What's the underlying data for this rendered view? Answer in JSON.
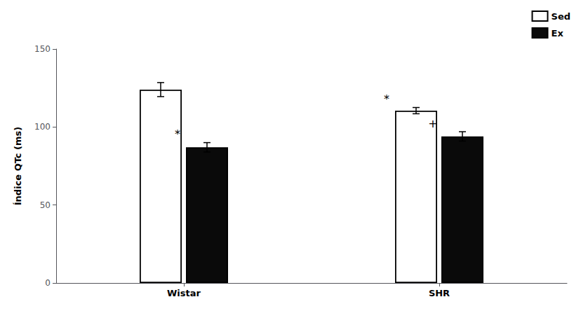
{
  "chart_data": {
    "type": "bar",
    "categories": [
      "Wistar",
      "SHR"
    ],
    "series": [
      {
        "name": "Sed",
        "color": "#ffffff",
        "values": [
          124.0,
          110.5
        ],
        "errors": [
          4.5,
          2.0
        ],
        "annotations": [
          null,
          "*"
        ]
      },
      {
        "name": "Ex",
        "color": "#0a0a0a",
        "values": [
          87.0,
          94.0
        ],
        "errors": [
          3.0,
          3.0
        ],
        "annotations": [
          "*",
          "+"
        ]
      }
    ],
    "ylabel": "Índice QTc (ms)",
    "ylim": [
      0,
      150
    ],
    "yticks": [
      0,
      50,
      100,
      150
    ],
    "grid": false,
    "legend": "upper right"
  }
}
